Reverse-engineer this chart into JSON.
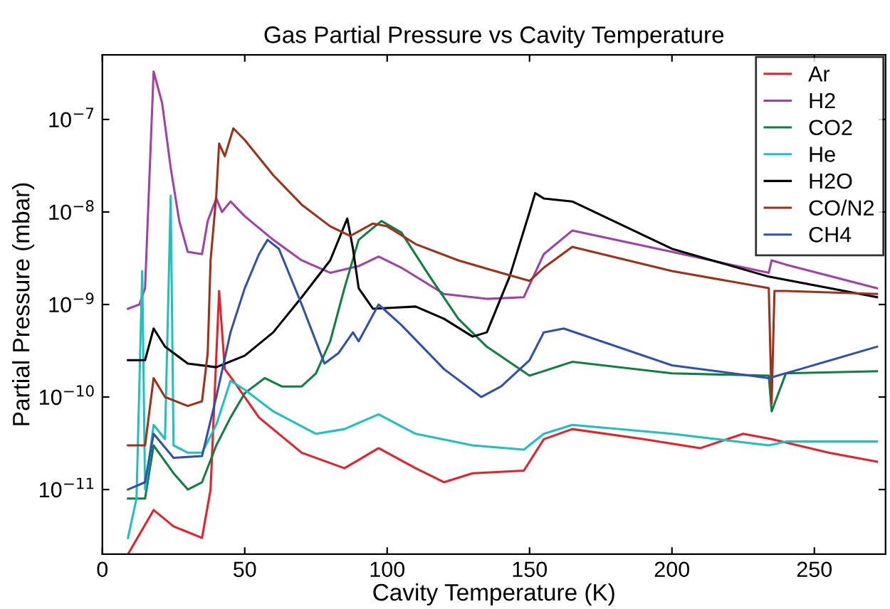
{
  "chart_data": {
    "type": "line",
    "title": "Gas Partial Pressure vs Cavity Temperature",
    "xlabel": "Cavity Temperature (K)",
    "ylabel": "Partial Pressure (mbar)",
    "log": "y",
    "xlim": [
      0,
      275
    ],
    "xticks": [
      0,
      50,
      100,
      150,
      200,
      250
    ],
    "ylim": [
      2e-12,
      5e-07
    ],
    "yticks": [
      {
        "value": 1e-11,
        "label": "10$^{−11}$"
      },
      {
        "value": 1e-10,
        "label": "10$^{−10}$"
      },
      {
        "value": 1e-09,
        "label": "10$^{−9}$"
      },
      {
        "value": 1e-08,
        "label": "10$^{−8}$"
      },
      {
        "value": 1e-07,
        "label": "10$^{−7}$"
      }
    ],
    "grid": false,
    "legend": "top right",
    "marker": "none",
    "line_style": "solid",
    "series": [
      {
        "name": "Ar",
        "color": "#e8202a",
        "x": [
          9,
          18,
          25,
          35,
          38,
          41,
          43,
          46,
          55,
          70,
          85,
          97,
          110,
          120,
          130,
          148,
          155,
          165,
          190,
          210,
          225,
          235,
          255,
          272
        ],
        "values": [
          2e-12,
          6e-12,
          4e-12,
          3e-12,
          1e-11,
          1.4e-09,
          2e-10,
          1.5e-10,
          6e-11,
          2.5e-11,
          1.7e-11,
          2.8e-11,
          1.7e-11,
          1.2e-11,
          1.5e-11,
          1.6e-11,
          3.5e-11,
          4.5e-11,
          3.5e-11,
          2.8e-11,
          4e-11,
          3.5e-11,
          2.5e-11,
          2e-11
        ]
      },
      {
        "name": "H2",
        "color": "#a040a8",
        "x": [
          9,
          13,
          15,
          18,
          21,
          24,
          27,
          30,
          35,
          37,
          40,
          42,
          45,
          50,
          60,
          70,
          80,
          90,
          97,
          105,
          120,
          135,
          148,
          155,
          165,
          200,
          234,
          235,
          240,
          272
        ],
        "values": [
          9e-10,
          1e-09,
          1.5e-09,
          3.3e-07,
          1.5e-07,
          3e-08,
          8e-09,
          3.7e-09,
          3.5e-09,
          8e-09,
          1.4e-08,
          1e-08,
          1.3e-08,
          9e-09,
          5e-09,
          3e-09,
          2.2e-09,
          2.6e-09,
          3.3e-09,
          2.5e-09,
          1.3e-09,
          1.15e-09,
          1.2e-09,
          3.5e-09,
          6.3e-09,
          3.7e-09,
          2.2e-09,
          3e-09,
          2.7e-09,
          1.5e-09
        ]
      },
      {
        "name": "CO2",
        "color": "#108040",
        "x": [
          9,
          15,
          18,
          25,
          30,
          35,
          40,
          45,
          50,
          57,
          63,
          70,
          75,
          80,
          85,
          90,
          98,
          105,
          115,
          125,
          135,
          150,
          165,
          200,
          234,
          235,
          240,
          272
        ],
        "values": [
          8e-12,
          8e-12,
          3e-11,
          1.5e-11,
          1e-11,
          1.2e-11,
          3e-11,
          6e-11,
          1.1e-10,
          1.6e-10,
          1.3e-10,
          1.3e-10,
          1.8e-10,
          4e-10,
          1.5e-09,
          5e-09,
          8e-09,
          6e-09,
          2e-09,
          7e-10,
          3.5e-10,
          1.7e-10,
          2.4e-10,
          1.8e-10,
          1.7e-10,
          7e-11,
          1.8e-10,
          1.9e-10
        ]
      },
      {
        "name": "He",
        "color": "#20c0c0",
        "x": [
          9,
          12,
          14,
          15,
          18,
          22,
          24,
          25,
          30,
          35,
          40,
          45,
          50,
          60,
          75,
          85,
          97,
          110,
          130,
          148,
          155,
          165,
          200,
          234,
          240,
          272
        ],
        "values": [
          3e-12,
          8e-12,
          2.3e-09,
          1e-11,
          5e-11,
          3.5e-11,
          1.5e-08,
          3e-11,
          2.5e-11,
          2.5e-11,
          5e-11,
          1.5e-10,
          1.2e-10,
          7e-11,
          4e-11,
          4.5e-11,
          6.5e-11,
          4e-11,
          3e-11,
          2.7e-11,
          4e-11,
          5e-11,
          4e-11,
          3e-11,
          3.3e-11,
          3.3e-11
        ]
      },
      {
        "name": "H2O",
        "color": "#000000",
        "x": [
          9,
          15,
          18,
          22,
          30,
          40,
          50,
          60,
          70,
          80,
          86,
          88,
          90,
          95,
          110,
          120,
          130,
          135,
          143,
          150,
          152,
          155,
          165,
          200,
          234,
          272
        ],
        "values": [
          2.5e-10,
          2.5e-10,
          5.5e-10,
          3.5e-10,
          2.3e-10,
          2.1e-10,
          2.8e-10,
          5e-10,
          1.2e-09,
          3e-09,
          8.5e-09,
          4e-09,
          1.5e-09,
          9e-10,
          9.5e-10,
          7e-10,
          4.5e-10,
          5e-10,
          2e-09,
          1e-08,
          1.6e-08,
          1.4e-08,
          1.3e-08,
          4e-09,
          2e-09,
          1.2e-09
        ]
      },
      {
        "name": "CO/N2",
        "color": "#a03018",
        "x": [
          9,
          15,
          18,
          22,
          30,
          35,
          37,
          38,
          40,
          41,
          43,
          46,
          50,
          60,
          70,
          80,
          87,
          95,
          100,
          110,
          125,
          140,
          150,
          155,
          165,
          200,
          234,
          235,
          236,
          240,
          272
        ],
        "values": [
          3e-11,
          3e-11,
          1.6e-10,
          1e-10,
          8e-11,
          9e-11,
          3e-10,
          3e-09,
          1.5e-08,
          5.5e-08,
          4e-08,
          8e-08,
          6e-08,
          2.5e-08,
          1.2e-08,
          7e-09,
          5.5e-09,
          7.5e-09,
          7e-09,
          4.5e-09,
          3e-09,
          2.2e-09,
          1.8e-09,
          2.5e-09,
          4.2e-09,
          2.3e-09,
          1.5e-09,
          8.5e-11,
          1.4e-09,
          1.4e-09,
          1.3e-09
        ]
      },
      {
        "name": "CH4",
        "color": "#3050b0",
        "x": [
          9,
          15,
          18,
          25,
          35,
          40,
          45,
          50,
          55,
          58,
          62,
          70,
          78,
          83,
          88,
          90,
          97,
          105,
          120,
          133,
          140,
          150,
          155,
          162,
          200,
          234,
          245,
          272
        ],
        "values": [
          1e-11,
          1.2e-11,
          4e-11,
          2.2e-11,
          2.3e-11,
          1e-10,
          5e-10,
          1.5e-09,
          3.5e-09,
          5e-09,
          4e-09,
          1e-09,
          2.3e-10,
          3e-10,
          5e-10,
          4e-10,
          1e-09,
          6e-10,
          2e-10,
          1e-10,
          1.3e-10,
          2.5e-10,
          5e-10,
          5.5e-10,
          2.2e-10,
          1.6e-10,
          2e-10,
          3.5e-10
        ]
      }
    ]
  }
}
